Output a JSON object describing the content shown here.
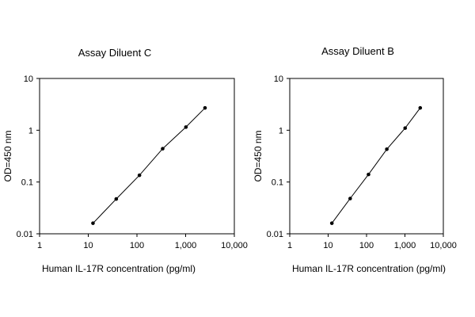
{
  "chart_data": [
    {
      "type": "line",
      "title": "Assay Diluent C",
      "xlabel": "Human IL-17R concentration (pg/ml)",
      "ylabel": "OD=450 nm",
      "xscale": "log",
      "yscale": "log",
      "xlim": [
        1,
        10000
      ],
      "ylim": [
        0.01,
        10
      ],
      "xticks": [
        1,
        10,
        100,
        1000,
        10000
      ],
      "xtick_labels": [
        "1",
        "10",
        "100",
        "1,000",
        "10,000"
      ],
      "yticks": [
        0.01,
        0.1,
        1,
        10
      ],
      "ytick_labels": [
        "0.01",
        "0.1",
        "1",
        "10"
      ],
      "grid": false,
      "series": [
        {
          "x": [
            12.5,
            37.5,
            112.5,
            337.5,
            1012.5,
            2500
          ],
          "y": [
            0.016,
            0.047,
            0.135,
            0.44,
            1.15,
            2.7
          ]
        }
      ]
    },
    {
      "type": "line",
      "title": "Assay Diluent B",
      "xlabel": "Human IL-17R concentration (pg/ml)",
      "ylabel": "OD=450 nm",
      "xscale": "log",
      "yscale": "log",
      "xlim": [
        1,
        10000
      ],
      "ylim": [
        0.01,
        10
      ],
      "xticks": [
        1,
        10,
        100,
        1000,
        10000
      ],
      "xtick_labels": [
        "1",
        "10",
        "100",
        "1,000",
        "10,000"
      ],
      "yticks": [
        0.01,
        0.1,
        1,
        10
      ],
      "ytick_labels": [
        "0.01",
        "0.1",
        "1",
        "10"
      ],
      "grid": false,
      "series": [
        {
          "x": [
            12.5,
            37.5,
            112.5,
            337.5,
            1012.5,
            2500
          ],
          "y": [
            0.016,
            0.048,
            0.14,
            0.43,
            1.1,
            2.7
          ]
        }
      ]
    }
  ]
}
